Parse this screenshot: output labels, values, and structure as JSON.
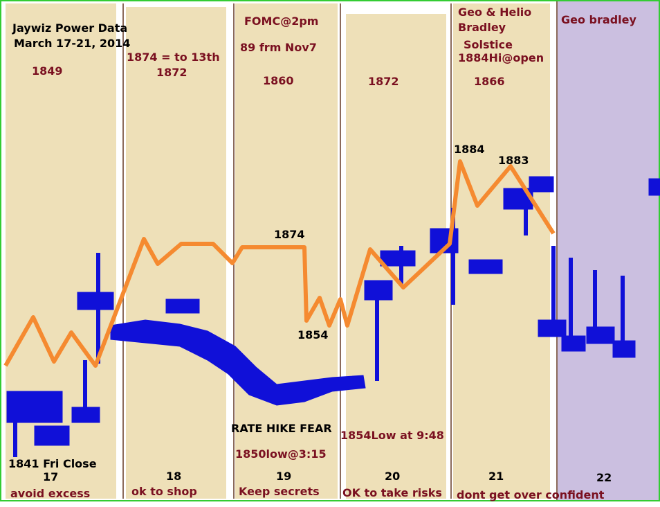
{
  "title": [
    "Jaywiz Power Data",
    "March 17-21, 2014"
  ],
  "columns": [
    {
      "day": "17",
      "motto": "avoid excess",
      "notes": [
        "1849",
        "1841 Fri Close"
      ]
    },
    {
      "day": "18",
      "motto": "ok to shop",
      "notes": [
        "1874 = to 13th",
        "1872"
      ]
    },
    {
      "day": "19",
      "motto": "Keep secrets",
      "notes": [
        "FOMC@2pm",
        "89 frm Nov7",
        "1860",
        "RATE HIKE FEAR",
        "1850low@3:15"
      ]
    },
    {
      "day": "20",
      "motto": "OK to take risks",
      "notes": [
        "1872",
        "1854Low at 9:48"
      ]
    },
    {
      "day": "21",
      "motto": "dont get over confident",
      "notes": [
        "Geo & Helio",
        "Bradley",
        "Solstice",
        "1884Hi@open",
        "1866"
      ]
    },
    {
      "day": "22",
      "notes": [
        "Geo bradley"
      ]
    }
  ],
  "point_labels": [
    "1874",
    "1854",
    "1884",
    "1883"
  ]
}
